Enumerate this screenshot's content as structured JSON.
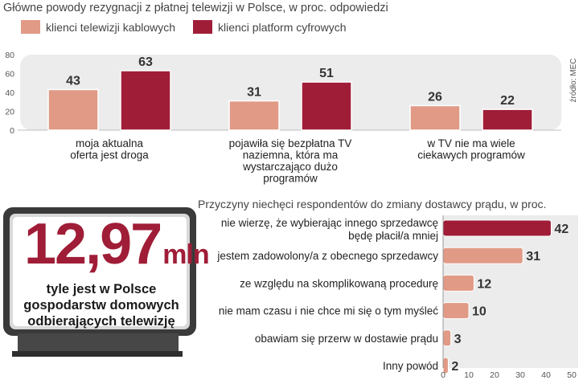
{
  "chart_data": [
    {
      "type": "bar",
      "title": "Główne powody rezygnacji z płatnej telewizji  w Polsce, w proc. odpowiedzi",
      "categories": [
        "moja aktualna oferta jest droga",
        "pojawiła się bezpłatna TV naziemna, która ma wystarczająco dużo programów",
        "w TV nie ma wiele ciekawych programów"
      ],
      "category_lines": [
        [
          "moja aktualna",
          "oferta jest droga"
        ],
        [
          "pojawiła się bezpłatna TV",
          "naziemna, która ma",
          "wystarczająco dużo",
          "programów"
        ],
        [
          "w TV nie ma wiele",
          "ciekawych programów"
        ]
      ],
      "series": [
        {
          "name": "klienci telewizji kablowych",
          "values": [
            43,
            31,
            26
          ],
          "color": "#e09a86"
        },
        {
          "name": "klienci platform cyfrowych",
          "values": [
            63,
            51,
            22
          ],
          "color": "#a01d37"
        }
      ],
      "ylim": [
        0,
        80
      ],
      "yticks": [
        0,
        20,
        40,
        60,
        80
      ],
      "legend": "top-left",
      "grid": false,
      "source": "źródło: MEC"
    },
    {
      "type": "bar",
      "orientation": "horizontal",
      "title": "Przyczyny niechęci respondentów do zmiany dostawcy prądu, w proc.",
      "categories": [
        "nie wierzę, że wybierając innego sprzedawcę będę płacił/a mniej",
        "jestem zadowolony/a z obecnego sprzedawcy",
        "ze względu na skomplikowaną procedurę",
        "nie mam czasu i nie chce mi się o tym myśleć",
        "obawiam się przerw w dostawie prądu",
        "Inny powód"
      ],
      "category_lines": [
        [
          "nie wierzę, że wybierając innego sprzedawcę",
          "będę płacił/a mniej"
        ],
        [
          "jestem zadowolony/a z obecnego sprzedawcy"
        ],
        [
          "ze względu na skomplikowaną procedurę"
        ],
        [
          "nie mam czasu i nie chce mi się o tym myśleć"
        ],
        [
          "obawiam się przerw w dostawie prądu"
        ],
        [
          "Inny powód"
        ]
      ],
      "values": [
        42,
        31,
        12,
        10,
        3,
        2
      ],
      "colors": [
        "#a01d37",
        "#e09a86",
        "#e09a86",
        "#e09a86",
        "#e09a86",
        "#e09a86"
      ],
      "xlim": [
        0,
        50
      ],
      "xticks": [
        0,
        10,
        20,
        30,
        40,
        50
      ],
      "grid": false
    }
  ],
  "highlight": {
    "number": "12,97",
    "unit": "mln",
    "caption": "tyle jest w Polsce gospodarstw domowych odbierających telewizję"
  }
}
